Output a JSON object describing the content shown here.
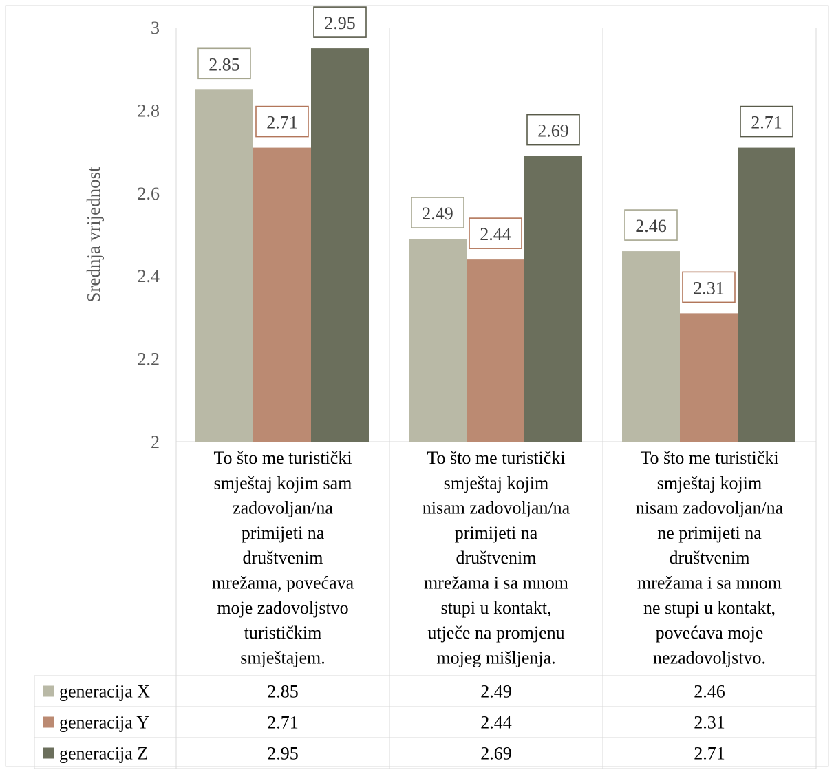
{
  "chart_data": {
    "type": "bar",
    "ylabel": "Srednja vrijednost",
    "ylim": [
      2,
      3
    ],
    "yticks": [
      2,
      2.2,
      2.4,
      2.6,
      2.8,
      3
    ],
    "ytick_labels": [
      "2",
      "2.2",
      "2.4",
      "2.6",
      "2.8",
      "3"
    ],
    "grid": "vertical category separators only",
    "legend": "data table below chart",
    "categories": [
      [
        "To što me turistički",
        "smještaj kojim sam",
        "zadovoljan/na",
        "primijeti na",
        "društvenim",
        "mrežama, povećava",
        "moje zadovoljstvo",
        "turističkim",
        "smještajem."
      ],
      [
        "To što me turistički",
        "smještaj kojim",
        "nisam zadovoljan/na",
        "primijeti na",
        "društvenim",
        "mrežama i sa mnom",
        "stupi u kontakt,",
        "utječe na promjenu",
        "mojeg mišljenja."
      ],
      [
        "To što me turistički",
        "smještaj kojim",
        "nisam zadovoljan/na",
        "ne primijeti na",
        "društvenim",
        "mrežama i sa mnom",
        "ne stupi u kontakt,",
        "povećava moje",
        "nezadovoljstvo."
      ]
    ],
    "series": [
      {
        "name": "generacija X",
        "color": "#b9b9a6",
        "values": [
          2.85,
          2.49,
          2.46
        ],
        "labels": [
          "2.85",
          "2.49",
          "2.46"
        ]
      },
      {
        "name": "generacija Y",
        "color": "#bb8a72",
        "values": [
          2.71,
          2.44,
          2.31
        ],
        "labels": [
          "2.71",
          "2.44",
          "2.31"
        ]
      },
      {
        "name": "generacija Z",
        "color": "#6b6f5c",
        "values": [
          2.95,
          2.69,
          2.71
        ],
        "labels": [
          "2.95",
          "2.69",
          "2.71"
        ]
      }
    ],
    "label_border_colors": [
      "#a6a68f",
      "#b2765a",
      "#595b4a"
    ]
  }
}
